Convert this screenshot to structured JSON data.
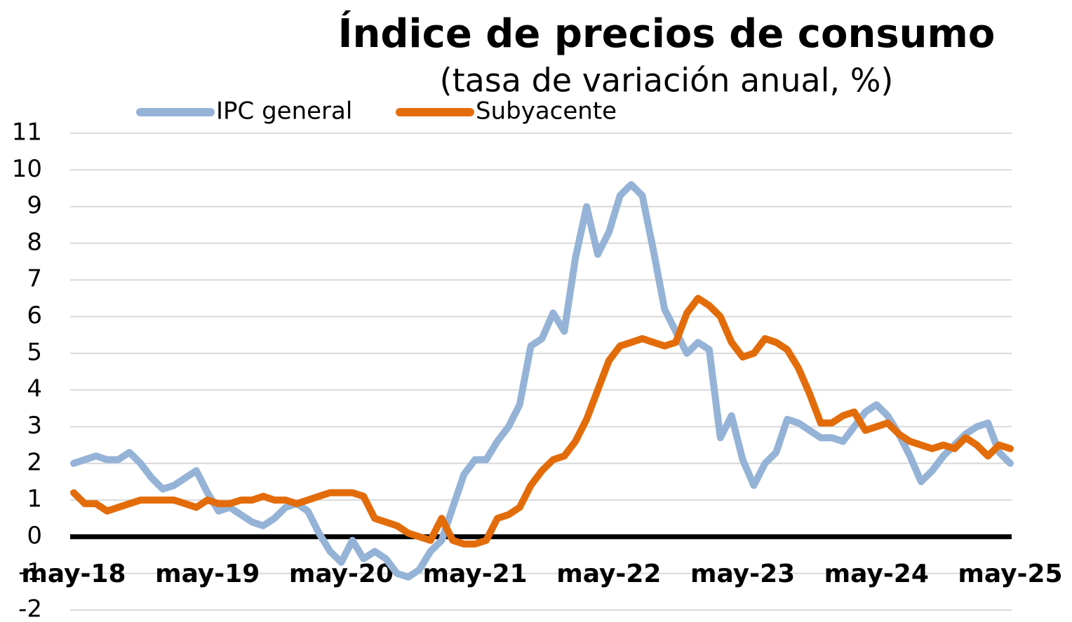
{
  "chart_data": {
    "type": "line",
    "title": "Índice de precios de consumo",
    "subtitle": "(tasa de variación anual, %)",
    "categories": [
      "may-18",
      null,
      null,
      null,
      null,
      null,
      null,
      null,
      null,
      null,
      null,
      null,
      "may-19",
      null,
      null,
      null,
      null,
      null,
      null,
      null,
      null,
      null,
      null,
      null,
      "may-20",
      null,
      null,
      null,
      null,
      null,
      null,
      null,
      null,
      null,
      null,
      null,
      "may-21",
      null,
      null,
      null,
      null,
      null,
      null,
      null,
      null,
      null,
      null,
      null,
      "may-22",
      null,
      null,
      null,
      null,
      null,
      null,
      null,
      null,
      null,
      null,
      null,
      "may-23",
      null,
      null,
      null,
      null,
      null,
      null,
      null,
      null,
      null,
      null,
      null,
      "may-24",
      null,
      null,
      null,
      null,
      null,
      null,
      null,
      null,
      null,
      null,
      null,
      "may-25"
    ],
    "series": [
      {
        "name": "IPC general",
        "color": "#95b3d7",
        "values": [
          2.0,
          2.1,
          2.2,
          2.1,
          2.1,
          2.3,
          2.0,
          1.6,
          1.3,
          1.4,
          1.6,
          1.8,
          1.2,
          0.7,
          0.8,
          0.6,
          0.4,
          0.3,
          0.5,
          0.8,
          0.9,
          0.7,
          0.1,
          -0.4,
          -0.7,
          -0.1,
          -0.6,
          -0.4,
          -0.6,
          -1.0,
          -1.1,
          -0.9,
          -0.4,
          -0.1,
          0.8,
          1.7,
          2.1,
          2.1,
          2.6,
          3.0,
          3.6,
          5.2,
          5.4,
          6.1,
          5.6,
          7.6,
          9.0,
          7.7,
          8.3,
          9.3,
          9.6,
          9.3,
          7.8,
          6.2,
          5.6,
          5.0,
          5.3,
          5.1,
          2.7,
          3.3,
          2.1,
          1.4,
          2.0,
          2.3,
          3.2,
          3.1,
          2.9,
          2.7,
          2.7,
          2.6,
          3.0,
          3.4,
          3.6,
          3.3,
          2.8,
          2.2,
          1.5,
          1.8,
          2.2,
          2.5,
          2.8,
          3.0,
          3.1,
          2.3,
          2.0
        ]
      },
      {
        "name": "Subyacente",
        "color": "#e36c0a",
        "values": [
          1.2,
          0.9,
          0.9,
          0.7,
          0.8,
          0.9,
          1.0,
          1.0,
          1.0,
          1.0,
          0.9,
          0.8,
          1.0,
          0.9,
          0.9,
          1.0,
          1.0,
          1.1,
          1.0,
          1.0,
          0.9,
          1.0,
          1.1,
          1.2,
          1.2,
          1.2,
          1.1,
          0.5,
          0.4,
          0.3,
          0.1,
          0.0,
          -0.1,
          0.5,
          -0.1,
          -0.2,
          -0.2,
          -0.1,
          0.5,
          0.6,
          0.8,
          1.4,
          1.8,
          2.1,
          2.2,
          2.6,
          3.2,
          4.0,
          4.8,
          5.2,
          5.3,
          5.4,
          5.3,
          5.2,
          5.3,
          6.1,
          6.5,
          6.3,
          6.0,
          5.3,
          4.9,
          5.0,
          5.4,
          5.3,
          5.1,
          4.6,
          3.9,
          3.1,
          3.1,
          3.3,
          3.4,
          2.9,
          3.0,
          3.1,
          2.8,
          2.6,
          2.5,
          2.4,
          2.5,
          2.4,
          2.7,
          2.5,
          2.2,
          2.5,
          2.4
        ]
      }
    ],
    "ylim": [
      -2,
      11
    ],
    "yticks": [
      -2,
      -1,
      0,
      1,
      2,
      3,
      4,
      5,
      6,
      7,
      8,
      9,
      10,
      11
    ],
    "grid": true
  }
}
